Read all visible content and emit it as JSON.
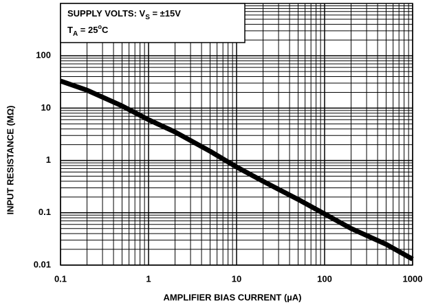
{
  "chart_data": {
    "type": "line",
    "x_label": "AMPLIFIER BIAS CURRENT (µA)",
    "y_label": "INPUT RESISTANCE (MΩ)",
    "annotation": {
      "line1": [
        "SUPPLY VOLTS:  V",
        "S",
        " = ±15V"
      ],
      "line2": [
        "T",
        "A",
        " =  25",
        "o",
        "C"
      ]
    },
    "x_log": true,
    "y_log": true,
    "grid": true,
    "minor_grid": true,
    "xlim": [
      0.1,
      1000
    ],
    "xticks": [
      0.1,
      1,
      10,
      100,
      1000
    ],
    "ylim": [
      0.01,
      1000
    ],
    "yticks": [
      0.01,
      0.1,
      1,
      10,
      100
    ],
    "series": [
      {
        "color": "#000000",
        "x": [
          0.1,
          0.2,
          0.5,
          1,
          2,
          5,
          10,
          20,
          50,
          100,
          200,
          500,
          1000
        ],
        "values": [
          33,
          22,
          11,
          6,
          3.5,
          1.5,
          0.75,
          0.4,
          0.18,
          0.095,
          0.05,
          0.025,
          0.013
        ]
      }
    ]
  }
}
